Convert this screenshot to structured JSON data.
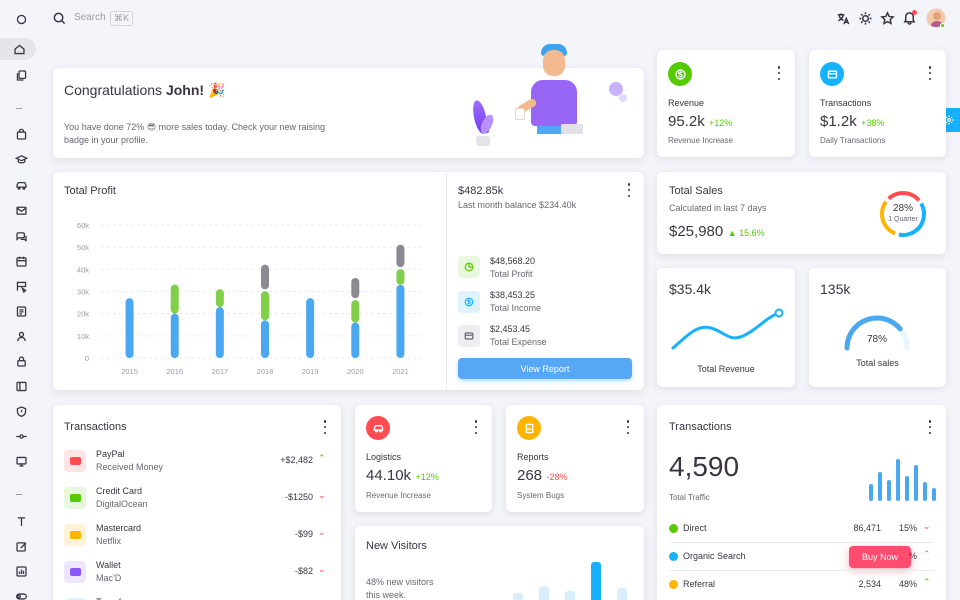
{
  "topbar": {
    "search_label": "Search",
    "search_shortcut": "⌘K"
  },
  "sidebar": {
    "items": [
      "home-icon",
      "copy-icon",
      "shopping-bag-icon",
      "graduation-icon",
      "car-icon",
      "mail-icon",
      "chat-icon",
      "calendar-icon",
      "kanban-icon",
      "file-text-icon",
      "user-icon",
      "lock-icon",
      "layout-icon",
      "shield-icon",
      "git-commit-icon",
      "monitor-icon",
      "type-icon",
      "edit-icon",
      "chart-icon",
      "toggle-icon"
    ]
  },
  "congrats": {
    "title_prefix": "Congratulations ",
    "name": "John!",
    "emoji": "🎉",
    "line1": "You have done 72% 😎 more sales today. Check your new raising",
    "line2": "badge in your profile."
  },
  "revenue_card": {
    "label": "Revenue",
    "value": "95.2k",
    "change": "+12%",
    "caption": "Revenue Increase",
    "color": "#56ca00"
  },
  "transactions_small": {
    "label": "Transactions",
    "value": "$1.2k",
    "change": "+38%",
    "caption": "Daily Transactions",
    "color": "#16b1ff"
  },
  "total_profit": {
    "title": "Total Profit",
    "chart_data": {
      "type": "bar",
      "categories": [
        "2015",
        "2016",
        "2017",
        "2018",
        "2019",
        "2020",
        "2021"
      ],
      "yticks": [
        "60k",
        "50k",
        "40k",
        "30k",
        "20k",
        "10k",
        "0"
      ],
      "ylim": [
        0,
        60
      ],
      "series": [
        {
          "values": [
            27,
            20,
            23,
            17,
            27,
            16,
            33
          ],
          "color": "#4aa8f0"
        },
        {
          "values": [
            0,
            14,
            9,
            14,
            0,
            11,
            8
          ],
          "color": "#7fcf48"
        },
        {
          "values": [
            0,
            0,
            0,
            12,
            0,
            10,
            11
          ],
          "color": "#8a8a90"
        }
      ]
    },
    "header_value": "$482.85k",
    "header_caption": "Last month balance $234.40k",
    "stats": [
      {
        "value": "$48,568.20",
        "label": "Total Profit",
        "icon": "pie-icon",
        "color": "#56ca00",
        "bg": "#e8f7de"
      },
      {
        "value": "$38,453.25",
        "label": "Total Income",
        "icon": "dollar-icon",
        "color": "#16b1ff",
        "bg": "#dff3ff"
      },
      {
        "value": "$2,453.45",
        "label": "Total Expense",
        "icon": "card-icon",
        "color": "#6b6672",
        "bg": "#eeedf0"
      }
    ],
    "button": "View Report"
  },
  "total_sales": {
    "title": "Total Sales",
    "caption": "Calculated in last 7 days",
    "value": "$25,980",
    "change": "15.6%",
    "donut_value": "28%",
    "donut_label": "1 Quarter"
  },
  "revenue_line": {
    "value": "$35.4k",
    "label": "Total Revenue"
  },
  "sales_gauge": {
    "value": "135k",
    "label": "Total sales",
    "gauge_value": "78%",
    "fraction": 0.78
  },
  "transactions_list": {
    "title": "Transactions",
    "items": [
      {
        "name": "PayPal",
        "sub": "Received Money",
        "amount": "+$2,482",
        "dir": "up",
        "color": "#ff4c51",
        "bg": "#ffe4e5"
      },
      {
        "name": "Credit Card",
        "sub": "DigitalOcean",
        "amount": "-$1250",
        "dir": "down",
        "color": "#56ca00",
        "bg": "#e8f7de"
      },
      {
        "name": "Mastercard",
        "sub": "Netflix",
        "amount": "-$99",
        "dir": "down",
        "color": "#ffb400",
        "bg": "#fff3d6"
      },
      {
        "name": "Wallet",
        "sub": "Mac'D",
        "amount": "-$82",
        "dir": "down",
        "color": "#8c57ff",
        "bg": "#eee6ff"
      },
      {
        "name": "Transfer",
        "sub": "",
        "amount": "",
        "dir": "",
        "color": "#16b1ff",
        "bg": "#dff3ff"
      }
    ]
  },
  "logistics": {
    "label": "Logistics",
    "value": "44.10k",
    "change": "+12%",
    "caption": "Revenue Increase",
    "color": "#ff4c51"
  },
  "reports": {
    "label": "Reports",
    "value": "268",
    "change": "-28%",
    "caption": "System Bugs",
    "color": "#ffb400"
  },
  "new_visitors": {
    "title": "New Visitors",
    "line1": "48% new visitors",
    "line2": "this week.",
    "bars": [
      0.3,
      0.45,
      0.35,
      1.0,
      0.4
    ]
  },
  "traffic": {
    "title": "Transactions",
    "value": "4,590",
    "caption": "Total Traffic",
    "bars": [
      0.4,
      0.7,
      0.5,
      1.0,
      0.6,
      0.85,
      0.45,
      0.3
    ],
    "rows": [
      {
        "name": "Direct",
        "value": "86,471",
        "pct": "15%",
        "dir": "down",
        "color": "#56ca00"
      },
      {
        "name": "Organic Search",
        "value": "",
        "pct": "%",
        "dir": "up",
        "color": "#16b1ff"
      },
      {
        "name": "Referral",
        "value": "2,534",
        "pct": "48%",
        "dir": "up",
        "color": "#ffb400"
      }
    ],
    "buy_now": "Buy Now"
  }
}
